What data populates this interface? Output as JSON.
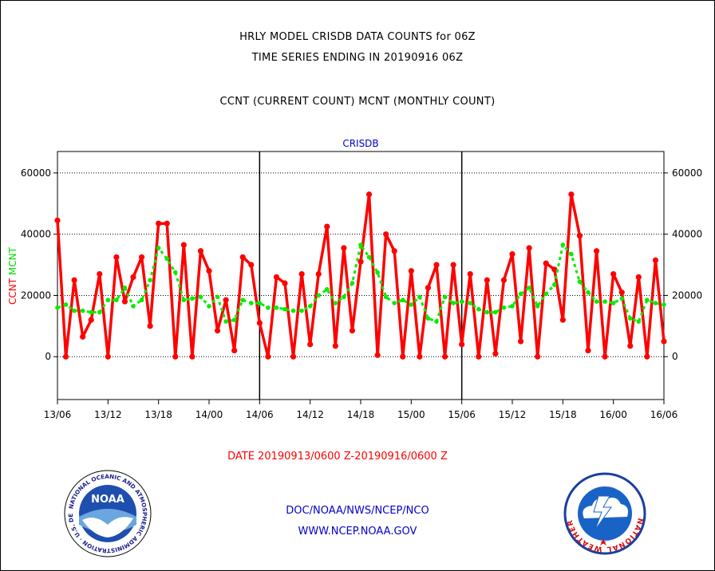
{
  "titles": {
    "line1": "HRLY MODEL CRISDB DATA COUNTS for 06Z",
    "line2": "TIME SERIES ENDING IN 20190916 06Z",
    "line3": "CCNT (CURRENT COUNT) MCNT (MONTHLY COUNT)"
  },
  "chart_data": {
    "type": "line",
    "title": "CRISDB",
    "ylabel_parts": [
      {
        "text": "CCNT",
        "color": "#ff0000"
      },
      {
        "text": "MCNT",
        "color": "#00dd00"
      }
    ],
    "ylim": [
      -14000,
      67000
    ],
    "yticks": [
      0,
      20000,
      40000,
      60000
    ],
    "ytick_labels": [
      "0",
      "20000",
      "40000",
      "60000"
    ],
    "xticks": [
      0,
      6,
      12,
      18,
      24,
      30,
      36,
      42,
      48,
      54,
      60,
      66,
      72
    ],
    "xtick_labels": [
      "13/06",
      "13/12",
      "13/18",
      "14/00",
      "14/06",
      "14/12",
      "14/18",
      "15/00",
      "15/06",
      "15/12",
      "15/18",
      "16/00",
      "16/06"
    ],
    "xlim": [
      0,
      72
    ],
    "day_dividers": [
      24,
      48
    ],
    "grid": true,
    "series": [
      {
        "name": "CCNT",
        "color": "#ff0000",
        "values": [
          44500,
          0,
          25000,
          6500,
          12000,
          27000,
          0,
          32500,
          18000,
          26000,
          32500,
          10000,
          43500,
          43500,
          0,
          36500,
          0,
          34500,
          28000,
          8500,
          18500,
          2000,
          32500,
          30000,
          11000,
          0,
          26000,
          24000,
          0,
          27000,
          4000,
          27000,
          42500,
          3500,
          35500,
          8500,
          31000,
          53000,
          500,
          40000,
          34500,
          0,
          28000,
          0,
          22500,
          30000,
          0,
          30000,
          4000,
          27000,
          0,
          25000,
          1000,
          25000,
          33500,
          5000,
          35500,
          0,
          30500,
          28500,
          12000,
          53000,
          39500,
          2000,
          34500,
          0,
          27000,
          21000,
          3500,
          26000,
          0,
          31500,
          5000
        ]
      },
      {
        "name": "MCNT",
        "color": "#00ee00",
        "values": [
          16000,
          17000,
          15000,
          15000,
          14500,
          14500,
          18500,
          18500,
          22500,
          16500,
          18500,
          25000,
          35500,
          32000,
          27500,
          18500,
          19000,
          19500,
          16500,
          19500,
          11500,
          12000,
          18500,
          17500,
          17500,
          16000,
          16000,
          15500,
          15000,
          15000,
          16500,
          20000,
          22000,
          17500,
          19500,
          24000,
          36500,
          32500,
          27500,
          19500,
          17500,
          18500,
          17000,
          19500,
          12500,
          11500,
          19500,
          17500,
          18000,
          17500,
          15500,
          14500,
          14500,
          16000,
          16500,
          20500,
          22500,
          16500,
          20500,
          23500,
          36500,
          33500,
          24500,
          21000,
          18000,
          18000,
          17500,
          19000,
          12500,
          11500,
          18500,
          17500,
          17000
        ]
      }
    ]
  },
  "footer": {
    "date_range": "DATE 20190913/0600 Z-20190916/0600 Z",
    "org": "DOC/NOAA/NWS/NCEP/NCO",
    "url": "WWW.NCEP.NOAA.GOV"
  },
  "logos": {
    "noaa_center_text": "NOAA",
    "noaa_ring_text": "NATIONAL OCEANIC AND ATMOSPHERIC ADMINISTRATION · U.S. DEPARTMENT OF COMMERCE",
    "nws_ring_text": "NATIONAL WEATHER SERVICE"
  }
}
